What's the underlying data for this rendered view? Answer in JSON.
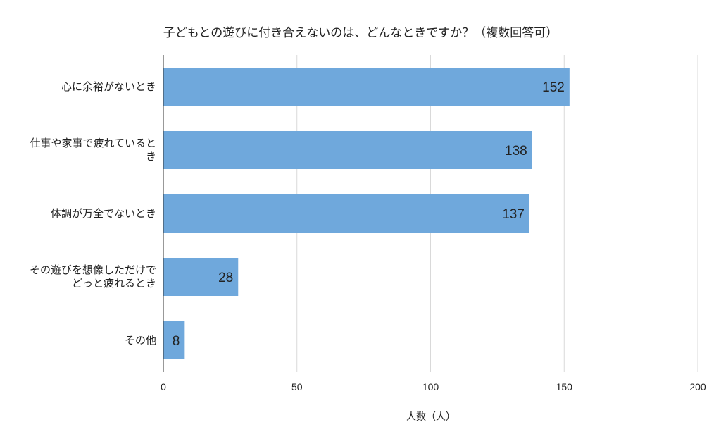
{
  "chart_data": {
    "type": "bar",
    "orientation": "horizontal",
    "title": "子どもとの遊びに付き合えないのは、どんなときですか？（複数回答可）",
    "xlabel": "人数（人）",
    "ylabel": "",
    "categories": [
      "心に余裕がないとき",
      "仕事や家事で疲れているとき",
      "体調が万全でないとき",
      "その遊びを想像しただけでどっと疲れるとき",
      "その他"
    ],
    "values": [
      152,
      138,
      137,
      28,
      8
    ],
    "xlim": [
      0,
      200
    ],
    "xticks": [
      0,
      50,
      100,
      150,
      200
    ],
    "grid": true,
    "data_labels": true,
    "bar_color": "#6fa8dc",
    "grid_color": "#d9d9d9",
    "axis_color": "#333333"
  }
}
